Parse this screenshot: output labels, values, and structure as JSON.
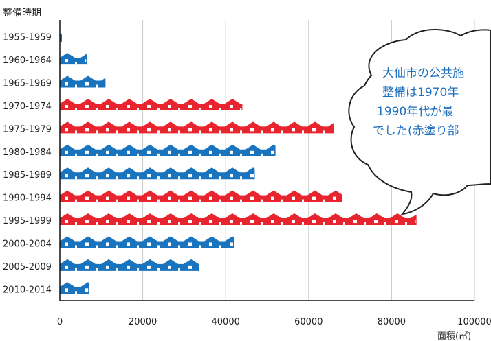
{
  "chart_data": {
    "type": "bar",
    "title": "整備時期",
    "xlabel": "面積(㎡)",
    "categories": [
      "1955-1959",
      "1960-1964",
      "1965-1969",
      "1970-1974",
      "1975-1979",
      "1980-1984",
      "1985-1989",
      "1990-1994",
      "1995-1999",
      "2000-2004",
      "2005-2009",
      "2010-2014"
    ],
    "values": [
      500,
      6500,
      11000,
      44000,
      66000,
      52000,
      47000,
      68000,
      86000,
      42000,
      33500,
      7000
    ],
    "highlight": [
      false,
      false,
      false,
      true,
      true,
      false,
      false,
      true,
      true,
      false,
      false,
      false
    ],
    "xlim": [
      0,
      100000
    ],
    "xticks": [
      "0",
      "20000",
      "40000",
      "60000",
      "80000",
      "100000"
    ],
    "grid": true,
    "colors": {
      "normal": "#1a73bd",
      "highlight": "#e8252f",
      "grid": "#c8c8c8",
      "axis": "#111111"
    },
    "callout": {
      "lines": [
        "大仙市の公共施",
        "整備は1970年",
        "1990年代が最",
        "でした(赤塗り部"
      ]
    }
  }
}
